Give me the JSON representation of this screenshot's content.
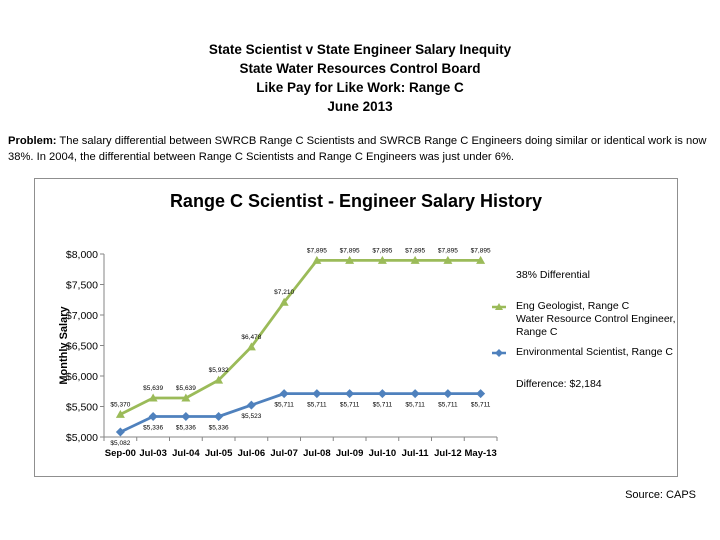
{
  "header": {
    "line1": "State Scientist v State Engineer Salary Inequity",
    "line2": "State Water Resources Control Board",
    "line3": "Like Pay for Like Work: Range C",
    "line4": "June 2013"
  },
  "problem": {
    "lead": "Problem:",
    "text": "The salary differential between SWRCB Range C Scientists and SWRCB Range C Engineers doing similar or identical work is now 38%.  In 2004, the differential between Range C Scientists and Range C Engineers was just under 6%."
  },
  "source": "Source:  CAPS",
  "chart_data": {
    "type": "line",
    "title": "Range C Scientist - Engineer Salary History",
    "xlabel": "",
    "ylabel": "Monthly Salary",
    "ylim": [
      5000,
      8000
    ],
    "yticks": [
      "$5,000",
      "$5,500",
      "$6,000",
      "$6,500",
      "$7,000",
      "$7,500",
      "$8,000"
    ],
    "ytick_values": [
      5000,
      5500,
      6000,
      6500,
      7000,
      7500,
      8000
    ],
    "categories": [
      "Sep-00",
      "Jul-03",
      "Jul-04",
      "Jul-05",
      "Jul-06",
      "Jul-07",
      "Jul-08",
      "Jul-09",
      "Jul-10",
      "Jul-11",
      "Jul-12",
      "May-13"
    ],
    "series": [
      {
        "name": "Eng Geologist, Range C Water Resource Control Engineer, Range C",
        "legend_lines": [
          "Eng Geologist, Range C",
          "Water Resource Control Engineer,",
          "Range C"
        ],
        "color": "#9bbb59",
        "marker": "triangle",
        "values": [
          5370,
          5639,
          5639,
          5932,
          6478,
          7210,
          7895,
          7895,
          7895,
          7895,
          7895,
          7895
        ],
        "labels": [
          "$5,370",
          "$5,639",
          "$5,639",
          "$5,932",
          "$6,478",
          "$7,210",
          "$7,895",
          "$7,895",
          "$7,895",
          "$7,895",
          "$7,895",
          "$7,895"
        ]
      },
      {
        "name": "Environmental Scientist, Range C",
        "legend_lines": [
          "Environmental Scientist, Range C"
        ],
        "color": "#4f81bd",
        "marker": "diamond",
        "values": [
          5082,
          5336,
          5336,
          5336,
          5523,
          5711,
          5711,
          5711,
          5711,
          5711,
          5711,
          5711
        ],
        "labels": [
          "$5,082",
          "$5,336",
          "$5,336",
          "$5,336",
          "$5,523",
          "$5,711",
          "$5,711",
          "$5,711",
          "$5,711",
          "$5,711",
          "$5,711",
          "$5,711"
        ]
      }
    ],
    "annotations": {
      "differential": "38% Differential",
      "difference_label": "Difference:",
      "difference_value": "$2,184"
    },
    "grid": false,
    "legend": "right"
  }
}
